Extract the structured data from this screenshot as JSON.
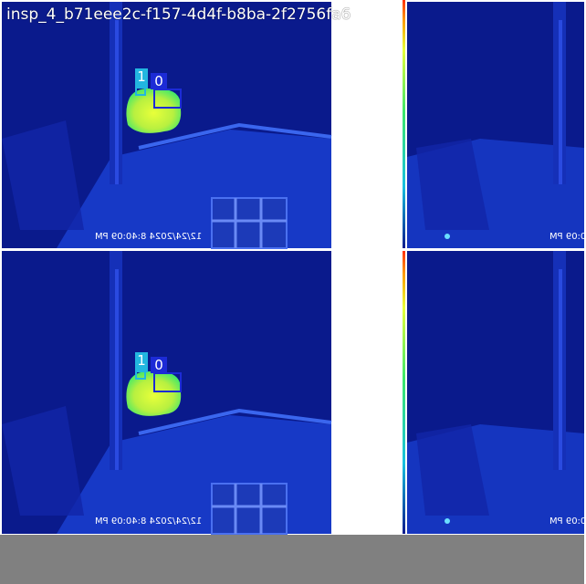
{
  "image_title": "insp_4_b71eee2c-f157-4d4f-b8ba-2f2756fa6",
  "panels": [
    {
      "timestamp": "12/24/2024 8:40:09 PM",
      "detections": [
        "1",
        "0"
      ]
    },
    {
      "timestamp": "12/24/2024 8:40:09 PM",
      "detections": [
        "1",
        "0"
      ]
    }
  ],
  "right_panels": [
    {
      "timestamp": "0:09 PM"
    },
    {
      "timestamp": "0:09 PM"
    }
  ],
  "colors": {
    "background_blue": "#0a1a8c",
    "hot_yellow": "#e8ff3a",
    "hot_green": "#3de86a",
    "box_blue": "#1c2bd6",
    "label_cyan": "#22b6e0",
    "label_blue": "#1c2bd6",
    "bottom_band": "#808080"
  }
}
